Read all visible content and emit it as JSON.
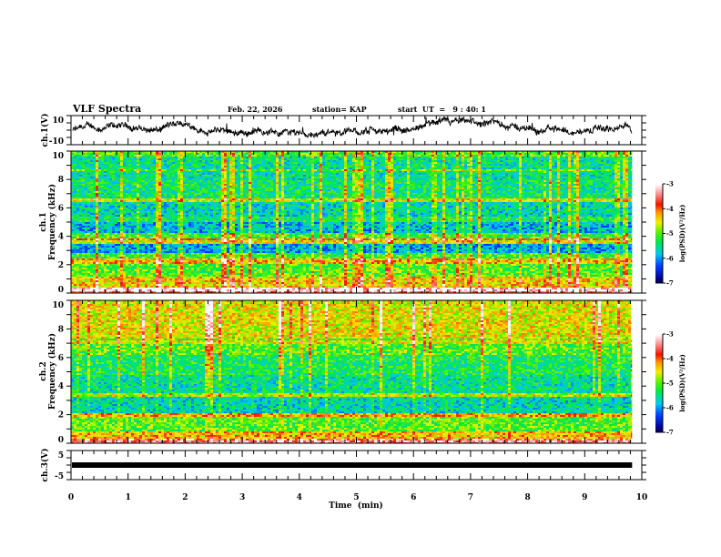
{
  "header": {
    "title": "VLF Spectra",
    "date": "Feb. 22, 2026",
    "station": "station= KAP",
    "start_ut": "start  UT  =   9 : 40: 1"
  },
  "chart_data": [
    {
      "type": "line",
      "panel": "ch1-waveform",
      "ylabel": "ch.1(V)",
      "ylim": [
        -10,
        10
      ],
      "yticks": [
        "10",
        "-10"
      ],
      "xlim": [
        0,
        10
      ],
      "data_end_min": 9.83,
      "description": "noisy waveform, values roughly between -6 and 6 V"
    },
    {
      "type": "heatmap",
      "panel": "ch1-spectrogram",
      "ylabel": "ch.1 Frequency (kHz)",
      "ylim": [
        0,
        10
      ],
      "yticks": [
        "0",
        "2",
        "4",
        "6",
        "8",
        "10"
      ],
      "xlim": [
        0,
        10
      ],
      "data_end_min": 9.83,
      "colorbar": {
        "label": "log(PSD)(V²/Hz)",
        "range": [
          -7,
          -3
        ],
        "ticks": [
          "-3",
          "-4",
          "-5",
          "-6",
          "-7"
        ]
      },
      "bands": [
        {
          "f": [
            0,
            0.4
          ],
          "level": -3.6
        },
        {
          "f": [
            0.4,
            1.2
          ],
          "level": -4.4
        },
        {
          "f": [
            1.2,
            2.0
          ],
          "level": -5.0
        },
        {
          "f": [
            2.0,
            2.4
          ],
          "level": -4.3
        },
        {
          "f": [
            2.4,
            2.8
          ],
          "level": -5.1
        },
        {
          "f": [
            2.8,
            3.5
          ],
          "level": -5.9
        },
        {
          "f": [
            3.5,
            3.8
          ],
          "level": -4.5
        },
        {
          "f": [
            3.8,
            4.2
          ],
          "level": -5.1
        },
        {
          "f": [
            4.2,
            5.0
          ],
          "level": -5.8
        },
        {
          "f": [
            5.0,
            5.4
          ],
          "level": -5.3
        },
        {
          "f": [
            5.4,
            6.4
          ],
          "level": -5.6
        },
        {
          "f": [
            6.4,
            6.7
          ],
          "level": -4.6
        },
        {
          "f": [
            6.7,
            8.0
          ],
          "level": -5.4
        },
        {
          "f": [
            8.0,
            9.6
          ],
          "level": -5.5
        },
        {
          "f": [
            9.6,
            10
          ],
          "level": -5.0
        }
      ]
    },
    {
      "type": "heatmap",
      "panel": "ch2-spectrogram",
      "ylabel": "ch.2 Frequency (kHz)",
      "ylim": [
        0,
        10
      ],
      "yticks": [
        "0",
        "2",
        "4",
        "6",
        "8",
        "10"
      ],
      "xlim": [
        0,
        10
      ],
      "data_end_min": 9.83,
      "colorbar": {
        "label": "log(PSD)(V²/Hz)",
        "range": [
          -7,
          -3
        ],
        "ticks": [
          "-3",
          "-4",
          "-5",
          "-6",
          "-7"
        ]
      },
      "bands": [
        {
          "f": [
            0,
            0.3
          ],
          "level": -3.4
        },
        {
          "f": [
            0.3,
            0.8
          ],
          "level": -4.3
        },
        {
          "f": [
            0.8,
            1.8
          ],
          "level": -5.0
        },
        {
          "f": [
            1.8,
            2.1
          ],
          "level": -4.2
        },
        {
          "f": [
            2.1,
            3.2
          ],
          "level": -5.6
        },
        {
          "f": [
            3.2,
            3.5
          ],
          "level": -4.7
        },
        {
          "f": [
            3.5,
            4.8
          ],
          "level": -5.5
        },
        {
          "f": [
            4.8,
            6.2
          ],
          "level": -5.3
        },
        {
          "f": [
            6.2,
            7.4
          ],
          "level": -5.0
        },
        {
          "f": [
            7.4,
            10
          ],
          "level": -4.5
        }
      ]
    },
    {
      "type": "line",
      "panel": "ch3-waveform",
      "ylabel": "ch.3(V)",
      "ylim": [
        -5,
        5
      ],
      "yticks": [
        "5",
        "-5"
      ],
      "xlim": [
        0,
        10
      ],
      "data_end_min": 9.83,
      "constant_value": 0
    }
  ],
  "xaxis": {
    "label": "Time  (min)",
    "ticks": [
      "0",
      "1",
      "2",
      "3",
      "4",
      "5",
      "6",
      "7",
      "8",
      "9",
      "10"
    ]
  }
}
